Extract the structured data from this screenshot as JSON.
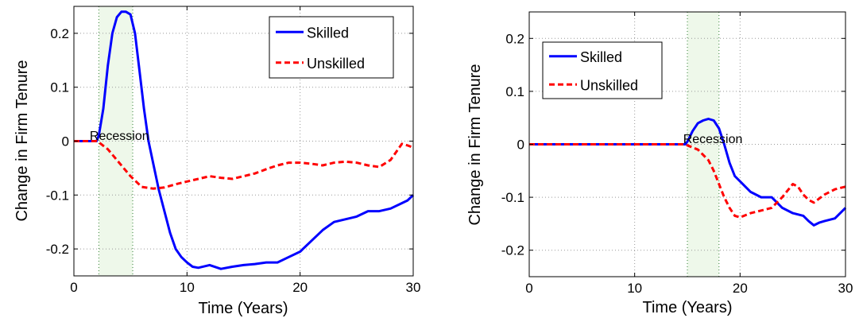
{
  "chart_data": [
    {
      "type": "line",
      "xlabel": "Time (Years)",
      "ylabel": "Change in Firm Tenure",
      "xlim": [
        0,
        30
      ],
      "ylim": [
        -0.25,
        0.25
      ],
      "xticks": [
        0,
        10,
        20,
        30
      ],
      "xtick_labels": [
        "0",
        "10",
        "20",
        "30"
      ],
      "yticks": [
        -0.2,
        -0.1,
        0,
        0.1,
        0.2
      ],
      "ytick_labels": [
        "-0.2",
        "-0.1",
        "0",
        "0.1",
        "0.2"
      ],
      "grid": true,
      "legend_position": "top-right",
      "recession": {
        "label": "Recession",
        "start": 2.2,
        "end": 5.2,
        "label_x": 1.4,
        "label_y": 0.002
      },
      "series": [
        {
          "name": "Skilled",
          "color": "#0000ff",
          "style": "solid",
          "x": [
            0,
            2,
            2.2,
            2.6,
            3.0,
            3.4,
            3.8,
            4.2,
            4.6,
            5.0,
            5.4,
            5.8,
            6.2,
            6.6,
            7.0,
            7.5,
            8.0,
            8.5,
            9.0,
            9.5,
            10.0,
            10.5,
            11.0,
            12.0,
            13.0,
            14.0,
            15.0,
            16.0,
            17.0,
            18.0,
            19.0,
            20.0,
            21.0,
            22.0,
            23.0,
            24.0,
            25.0,
            26.0,
            27.0,
            28.0,
            29.0,
            29.5,
            30.0
          ],
          "y": [
            0,
            0,
            0.01,
            0.06,
            0.14,
            0.2,
            0.23,
            0.24,
            0.24,
            0.235,
            0.2,
            0.13,
            0.06,
            0.0,
            -0.04,
            -0.09,
            -0.13,
            -0.17,
            -0.2,
            -0.215,
            -0.225,
            -0.233,
            -0.235,
            -0.23,
            -0.237,
            -0.233,
            -0.23,
            -0.228,
            -0.225,
            -0.225,
            -0.215,
            -0.205,
            -0.185,
            -0.165,
            -0.15,
            -0.145,
            -0.14,
            -0.13,
            -0.13,
            -0.125,
            -0.115,
            -0.11,
            -0.1
          ]
        },
        {
          "name": "Unskilled",
          "color": "#ff0000",
          "style": "dashed",
          "x": [
            0,
            2,
            2.2,
            3.0,
            4.0,
            5.0,
            6.0,
            7.0,
            8.0,
            9.0,
            10.0,
            11.0,
            12.0,
            13.0,
            14.0,
            15.0,
            16.0,
            17.0,
            18.0,
            19.0,
            20.0,
            21.0,
            22.0,
            23.0,
            24.0,
            25.0,
            26.0,
            27.0,
            28.0,
            29.0,
            29.5,
            30.0
          ],
          "y": [
            0,
            0,
            -0.002,
            -0.015,
            -0.04,
            -0.065,
            -0.085,
            -0.088,
            -0.086,
            -0.08,
            -0.075,
            -0.07,
            -0.065,
            -0.068,
            -0.07,
            -0.065,
            -0.06,
            -0.052,
            -0.045,
            -0.04,
            -0.04,
            -0.042,
            -0.045,
            -0.04,
            -0.038,
            -0.04,
            -0.045,
            -0.048,
            -0.035,
            -0.005,
            -0.008,
            -0.012
          ]
        }
      ]
    },
    {
      "type": "line",
      "xlabel": "Time (Years)",
      "ylabel": "Change in Firm Tenure",
      "xlim": [
        0,
        30
      ],
      "ylim": [
        -0.25,
        0.25
      ],
      "xticks": [
        0,
        10,
        20,
        30
      ],
      "xtick_labels": [
        "0",
        "10",
        "20",
        "30"
      ],
      "yticks": [
        -0.2,
        -0.1,
        0,
        0.1,
        0.2
      ],
      "ytick_labels": [
        "-0.2",
        "-0.1",
        "0",
        "0.1",
        "0.2"
      ],
      "grid": true,
      "legend_position": "top-left",
      "recession": {
        "label": "Recession",
        "start": 15.0,
        "end": 18.0,
        "label_x": 14.6,
        "label_y": 0.002
      },
      "series": [
        {
          "name": "Skilled",
          "color": "#0000ff",
          "style": "solid",
          "x": [
            0,
            14.8,
            15.0,
            15.5,
            16.0,
            16.5,
            17.0,
            17.5,
            18.0,
            18.5,
            19.0,
            19.5,
            20.0,
            20.5,
            21.0,
            22.0,
            23.0,
            24.0,
            25.0,
            26.0,
            26.5,
            27.0,
            27.5,
            28.0,
            29.0,
            30.0
          ],
          "y": [
            0,
            0,
            0.005,
            0.025,
            0.04,
            0.045,
            0.048,
            0.045,
            0.03,
            0.0,
            -0.035,
            -0.06,
            -0.07,
            -0.08,
            -0.09,
            -0.1,
            -0.1,
            -0.12,
            -0.13,
            -0.135,
            -0.145,
            -0.153,
            -0.148,
            -0.145,
            -0.14,
            -0.12
          ]
        },
        {
          "name": "Unskilled",
          "color": "#ff0000",
          "style": "dashed",
          "x": [
            0,
            14.8,
            15.0,
            16.0,
            17.0,
            17.5,
            18.0,
            18.5,
            19.0,
            19.5,
            20.0,
            21.0,
            22.0,
            23.0,
            24.0,
            25.0,
            25.5,
            26.0,
            26.5,
            27.0,
            28.0,
            29.0,
            30.0
          ],
          "y": [
            0,
            0,
            -0.002,
            -0.01,
            -0.03,
            -0.05,
            -0.075,
            -0.1,
            -0.12,
            -0.135,
            -0.138,
            -0.13,
            -0.125,
            -0.12,
            -0.1,
            -0.075,
            -0.08,
            -0.095,
            -0.105,
            -0.11,
            -0.095,
            -0.085,
            -0.08
          ]
        }
      ]
    }
  ]
}
